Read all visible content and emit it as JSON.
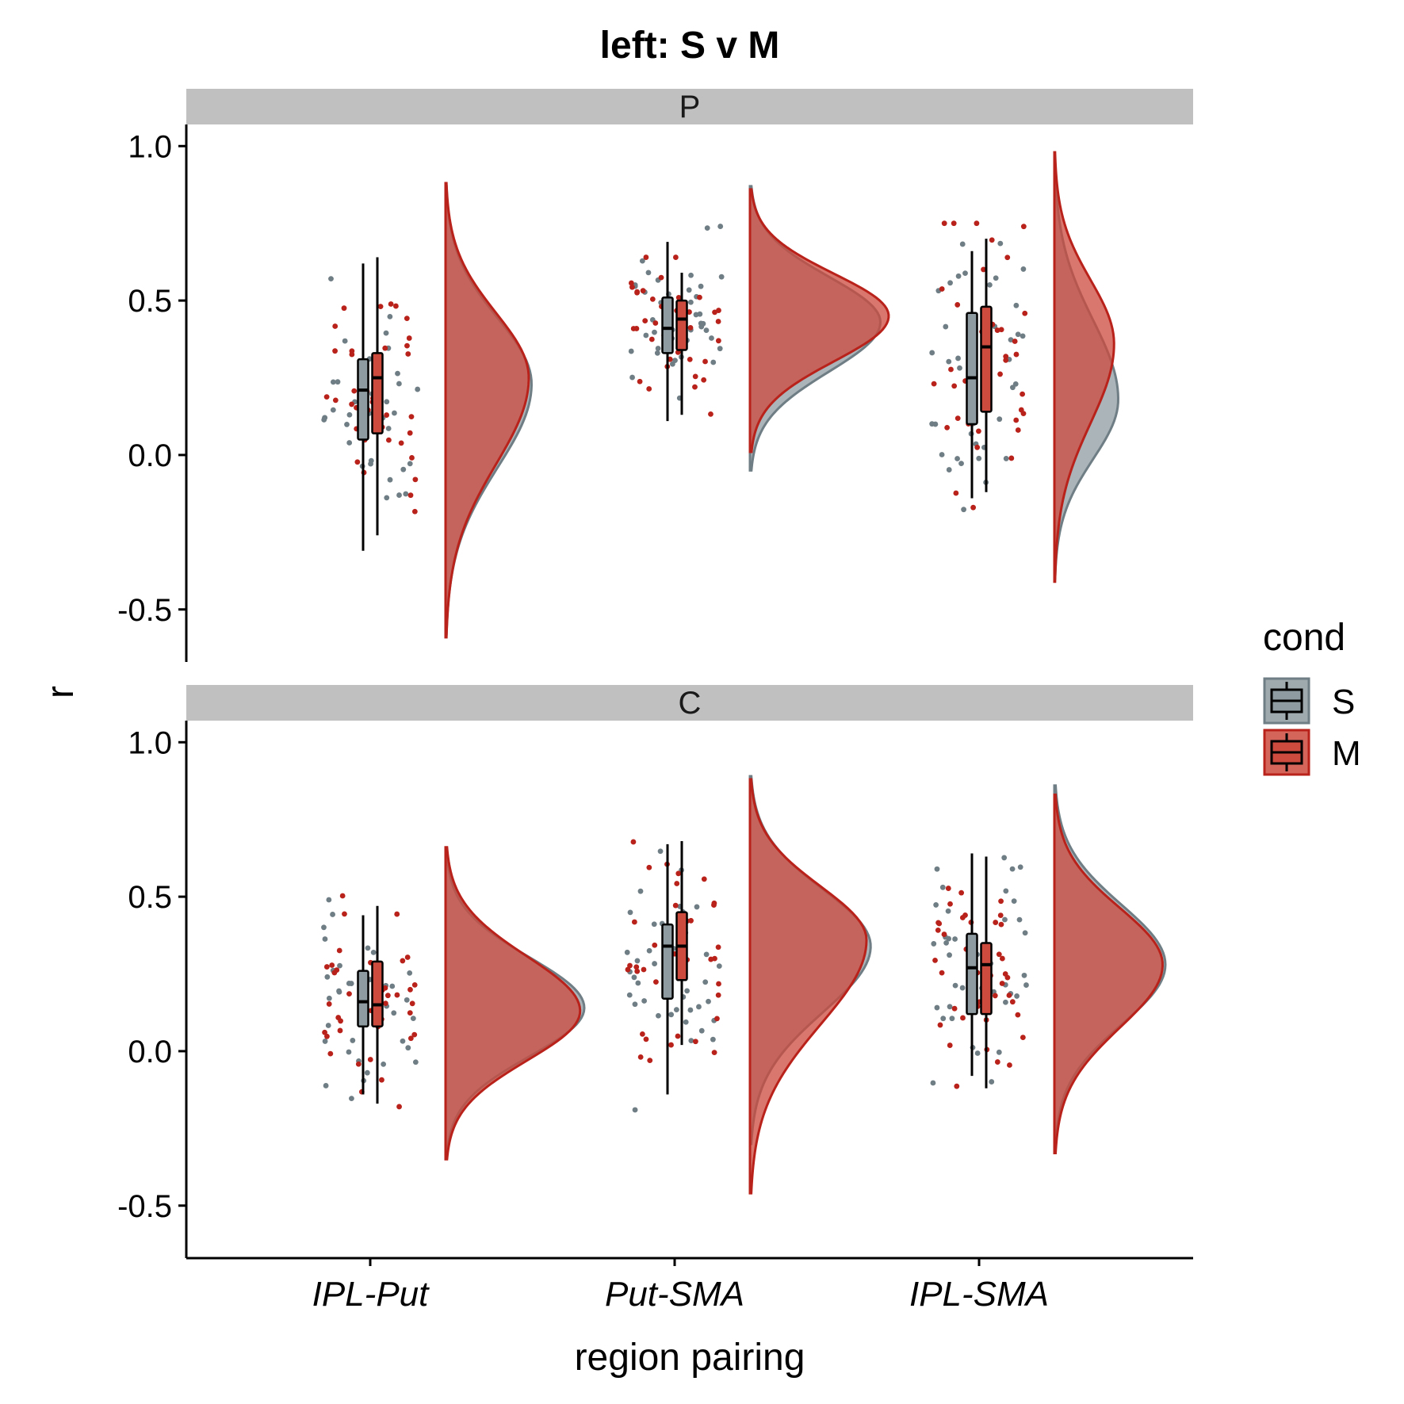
{
  "chart_data": {
    "type": "raincloud",
    "title": "left: S v M",
    "xlabel": "region pairing",
    "ylabel": "r",
    "categories": [
      "IPL-Put",
      "Put-SMA",
      "IPL-SMA"
    ],
    "ylim": [
      -0.67,
      1.07
    ],
    "y_ticks": [
      -0.5,
      0.0,
      0.5,
      1.0
    ],
    "y_tick_labels": [
      "-0.5",
      "0.0",
      "0.5",
      "1.0"
    ],
    "grid": false,
    "legend": {
      "title": "cond",
      "placement": "right",
      "entries": [
        {
          "name": "S",
          "color": "#7f8c92"
        },
        {
          "name": "M",
          "color": "#b5291b"
        }
      ]
    },
    "colors": {
      "S_fill": "#8e9ba1",
      "S_line": "#6f7d84",
      "M_fill": "#cc4a3e",
      "M_line": "#b9221a",
      "strip": "#c0c0c0"
    },
    "panels": [
      {
        "label": "P",
        "groups": [
          {
            "category": "IPL-Put",
            "S": {
              "median": 0.21,
              "q1": 0.05,
              "q3": 0.31,
              "whisker_low": -0.31,
              "whisker_high": 0.62,
              "density_peak": 0.23,
              "density_min": -0.58,
              "density_max": 0.87,
              "density_width": 0.62
            },
            "M": {
              "median": 0.25,
              "q1": 0.07,
              "q3": 0.33,
              "whisker_low": -0.26,
              "whisker_high": 0.64,
              "density_peak": 0.25,
              "density_min": -0.59,
              "density_max": 0.88,
              "density_width": 0.6
            }
          },
          {
            "category": "Put-SMA",
            "S": {
              "median": 0.41,
              "q1": 0.33,
              "q3": 0.51,
              "whisker_low": 0.11,
              "whisker_high": 0.69,
              "density_peak": 0.43,
              "density_min": -0.05,
              "density_max": 0.87,
              "density_width": 0.94
            },
            "M": {
              "median": 0.44,
              "q1": 0.34,
              "q3": 0.5,
              "whisker_low": 0.13,
              "whisker_high": 0.59,
              "density_peak": 0.45,
              "density_min": 0.01,
              "density_max": 0.86,
              "density_width": 1.0
            }
          },
          {
            "category": "IPL-SMA",
            "S": {
              "median": 0.25,
              "q1": 0.1,
              "q3": 0.46,
              "whisker_low": -0.14,
              "whisker_high": 0.66,
              "density_peak": 0.18,
              "density_min": -0.4,
              "density_max": 0.95,
              "density_width": 0.46
            },
            "M": {
              "median": 0.35,
              "q1": 0.14,
              "q3": 0.48,
              "whisker_low": -0.12,
              "whisker_high": 0.7,
              "density_peak": 0.36,
              "density_min": -0.41,
              "density_max": 0.98,
              "density_width": 0.43
            }
          }
        ]
      },
      {
        "label": "C",
        "groups": [
          {
            "category": "IPL-Put",
            "S": {
              "median": 0.16,
              "q1": 0.08,
              "q3": 0.26,
              "whisker_low": -0.14,
              "whisker_high": 0.44,
              "density_peak": 0.14,
              "density_min": -0.33,
              "density_max": 0.63,
              "density_width": 1.0
            },
            "M": {
              "median": 0.15,
              "q1": 0.08,
              "q3": 0.29,
              "whisker_low": -0.17,
              "whisker_high": 0.47,
              "density_peak": 0.13,
              "density_min": -0.35,
              "density_max": 0.66,
              "density_width": 0.97
            }
          },
          {
            "category": "Put-SMA",
            "S": {
              "median": 0.34,
              "q1": 0.17,
              "q3": 0.41,
              "whisker_low": -0.14,
              "whisker_high": 0.67,
              "density_peak": 0.34,
              "density_min": -0.3,
              "density_max": 0.89,
              "density_width": 0.87
            },
            "M": {
              "median": 0.34,
              "q1": 0.23,
              "q3": 0.45,
              "whisker_low": 0.02,
              "whisker_high": 0.68,
              "density_peak": 0.36,
              "density_min": -0.46,
              "density_max": 0.88,
              "density_width": 0.84
            }
          },
          {
            "category": "IPL-SMA",
            "S": {
              "median": 0.27,
              "q1": 0.12,
              "q3": 0.38,
              "whisker_low": -0.08,
              "whisker_high": 0.64,
              "density_peak": 0.28,
              "density_min": -0.3,
              "density_max": 0.86,
              "density_width": 0.8
            },
            "M": {
              "median": 0.28,
              "q1": 0.12,
              "q3": 0.35,
              "whisker_low": -0.12,
              "whisker_high": 0.63,
              "density_peak": 0.28,
              "density_min": -0.33,
              "density_max": 0.83,
              "density_width": 0.78
            }
          }
        ]
      }
    ]
  }
}
